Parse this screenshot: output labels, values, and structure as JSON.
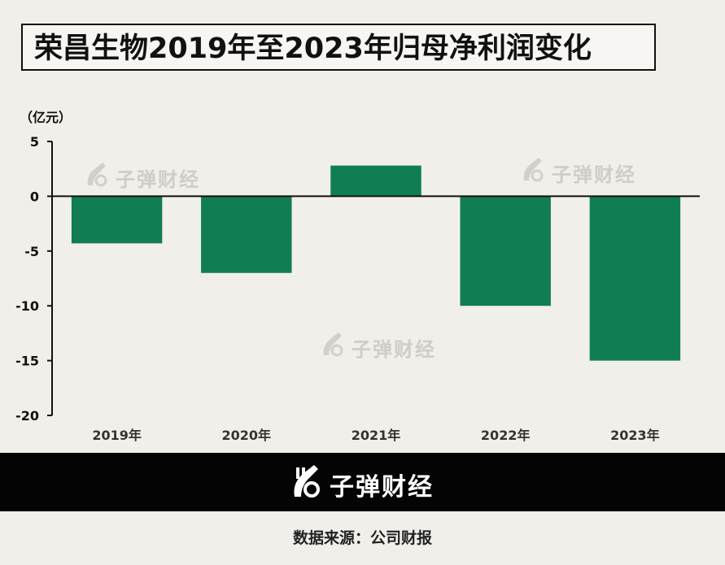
{
  "title": "荣昌生物2019年至2023年归母净利润变化",
  "unit_label": "（亿元）",
  "watermark_text": "子弹财经",
  "footer": {
    "brand": "子弹财经",
    "source": "数据来源：公司财报"
  },
  "colors": {
    "bar": "#117d53",
    "background": "#f1efea",
    "footer_bg": "#040404"
  },
  "chart_data": {
    "type": "bar",
    "categories": [
      "2019年",
      "2020年",
      "2021年",
      "2022年",
      "2023年"
    ],
    "values": [
      -4.3,
      -7.0,
      2.8,
      -10.0,
      -15.0
    ],
    "title": "荣昌生物2019年至2023年归母净利润变化",
    "xlabel": "",
    "ylabel": "（亿元）",
    "ylim": [
      -20,
      5
    ],
    "yticks": [
      5,
      0,
      -5,
      -10,
      -15,
      -20
    ],
    "grid": false,
    "legend": "none"
  }
}
